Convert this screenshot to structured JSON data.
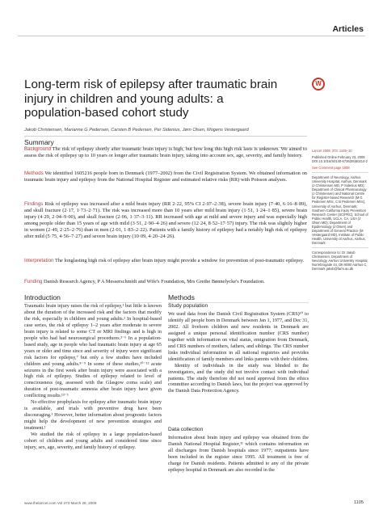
{
  "header": {
    "section": "Articles"
  },
  "logo": {
    "glyph": "W"
  },
  "title": "Long-term risk of epilepsy after traumatic brain injury in children and young adults: a population-based cohort study",
  "authors": "Jakob Christensen, Marianne G Pedersen, Carsten B Pedersen, Per Sidenius, Jørn Olsen, Mogens Vestergaard",
  "summary": {
    "heading": "Summary",
    "background_label": "Background",
    "background": "The risk of epilepsy shortly after traumatic brain injury is high, but how long this high risk lasts is unknown. We aimed to assess the risk of epilepsy up to 10 years or longer after traumatic brain injury, taking into account sex, age, severity, and family history.",
    "methods_label": "Methods",
    "methods": "We identified 1605216 people born in Denmark (1977–2002) from the Civil Registration System. We obtained information on traumatic brain injury and epilepsy from the National Hospital Register and estimated relative risks (RR) with Poisson analyses.",
    "findings_label": "Findings",
    "findings": "Risk of epilepsy was increased after a mild brain injury (RR 2·22, 95% CI 2·07–2·38), severe brain injury (7·40, 6·16–8·89), and skull fracture (2·17, 1·73–2·71). The risk was increased more than 10 years after mild brain injury (1·51, 1·24–1·85), severe brain injury (4·29, 2·04–9·00), and skull fracture (2·06, 1·37–3·11). RR increased with age at mild and severe injury and was especially high among people older than 15 years of age with mild (3·51, 2·90–4·26) and severe (12·24, 8·52–17·57) injury. The risk was slightly higher in women (2·49, 2·25–2·76) than in men (2·01, 1·83–2·22). Patients with a family history of epilepsy had a notably high risk of epilepsy after mild (5·75, 4·56–7·27) and severe brain injury (10·09, 4·20–24·26).",
    "interpretation_label": "Interpretation",
    "interpretation": "The longlasting high risk of epilepsy after brain injury might provide a window for prevention of post-traumatic epilepsy.",
    "funding_label": "Funding",
    "funding": "Danish Research Agency, P A Messerschmidt and Wife's Foundation, Mrs Grethe Bønnelycke's Foundation."
  },
  "introduction": {
    "heading": "Introduction",
    "p1": "Traumatic brain injury raises the risk of epilepsy,¹ but little is known about the duration of the increased risk and the factors that modify the risk, especially in children and young adults.² In hospital-based case series, the risk of epilepsy 1–2 years after moderate to severe brain injury is related to some CT or MRI findings and is high in people who had had neurosurgical procedures.³⁻⁶ In a population-based study, age in people who had traumatic brain injury at age 65 years or older and time since and severity of injury were significant risk factors for epilepsy,⁷ but only a few studies have included children and young adults.⁸⁻⁹ In some of these studies,¹⁰⁻¹² acute seizures in the first week after brain injury were associated with a high risk of epilepsy. Studies of epilepsy related to level of consciousness (eg, assessed with the Glasgow coma scale) and duration of post-traumatic amnesia after brain injury have given conflicting results.¹³⁻¹",
    "p2": "No effective prophylaxis for epilepsy after traumatic brain injury is available, and trials with preventive drug have been discouraging.¹ However, better information about prognostic factors might help the development of new prevention strategies and treatment.¹",
    "p3": "We studied the risk of epilepsy in a large population-based cohort of children and young adults and considered time since injury, sex, age, severity, and family history of epilepsy."
  },
  "methods_section": {
    "heading": "Methods",
    "study_population_heading": "Study population",
    "study_population": "We used data from the Danish Civil Registration System (CRS)¹⁰ to identify all people born in Denmark between Jan 1, 1977, and Dec 31, 2002. All liveborn children and new residents in Denmark are assigned a unique personal identification number (CRS number) together with information on vital status, emigration from Denmark, and CRS numbers of mothers, fathers, and siblings. The CRS number links individual information in all national registries and provides identification of family members and links parents with their children.",
    "study_population_p2": "Identity of individuals in the study was blinded to the investigators, and the study did not involve contact with individual patients. The study therefore did not need approval from the ethics committee according to Danish laws, but the project was approved by the Danish Data Protection Agency.",
    "data_collection_heading": "Data collection",
    "data_collection": "Information about brain injury and epilepsy was obtained from the Danish National Hospital Register,¹¹ which contains information on all discharges from Danish hospitals since 1977; outpatients have been included in the register since 1995. All treatment is free of charge for Danish residents. Patients admitted to any of the private epilepsy hospital in Denmark are also recorded in the"
  },
  "sidebar": {
    "citation": "Lancet 2009; 373: 1105–10",
    "published": "Published Online February 23, 2009 DOI:10.1016/S0140-6736(09)60214-2",
    "comment": "See Comment page 1058",
    "affiliations": "Department of Neurology, Aarhus University Hospital, Aarhus, Denmark (J Christensen MD, P Sidenius MD); Department of Clinical Pharmacology (J Christensen) and National Centre for Register-based Research (M G Pedersen MSc, C B Pedersen MSc), University of Aarhus, Denmark; Southern California Injury Prevention Research Center (SCIPRC), School of Public Health, UCLA, CA, USA (J Olsen MD); Department of Epidemiology (J Olsen) and Department of General Practice (M Vestergaard MD), Institute of Public Health, University of Aarhus, Aarhus, Denmark",
    "correspondence": "Correspondence to: Dr Jakob Christensen, Department of Neurology, Aarhus University Hospital, Norrebrogade 44, DK-8000 Aarhus C, Denmark jakob@farm.au.dk"
  },
  "footer": {
    "left": "www.thelancet.com   Vol 373   March 28, 2009",
    "right": "1105"
  }
}
